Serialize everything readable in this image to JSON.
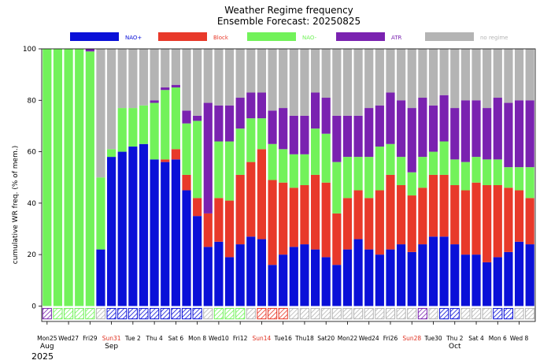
{
  "chart_data": {
    "type": "bar",
    "stacked": true,
    "title": "Weather Regime frequency",
    "subtitle": "Ensemble Forecast: 20250825",
    "ylabel": "cumulative WR freq. (% of mem.)",
    "xlabel": "",
    "ylim": [
      -6,
      100
    ],
    "yticks": [
      0,
      20,
      40,
      60,
      80,
      100
    ],
    "grid": false,
    "legend_position": "top",
    "x_tick_labels": [
      "Mon25",
      "Wed27",
      "Fri29",
      "Sun31",
      "Tue 2",
      "Thu 4",
      "Sat 6",
      "Mon 8",
      "Wed10",
      "Fri12",
      "Sun14",
      "Tue16",
      "Thu18",
      "Sat20",
      "Mon22",
      "Wed24",
      "Fri26",
      "Sun28",
      "Tue30",
      "Thu 2",
      "Sat 4",
      "Mon 6",
      "Wed 8"
    ],
    "weekend_tick_color": "#e03020",
    "weekend_ticks": [
      "Sun31",
      "Sun14",
      "Sun28"
    ],
    "month_labels": [
      {
        "tick": "Mon25",
        "text": "Aug"
      },
      {
        "tick": "Sun31",
        "text": "Sep"
      },
      {
        "tick": "Thu 2",
        "text": "Oct"
      }
    ],
    "year_label": "2025",
    "categories": [
      "Aug 25",
      "Aug 26",
      "Aug 27",
      "Aug 28",
      "Aug 29",
      "Aug 30",
      "Aug 31",
      "Sep 1",
      "Sep 2",
      "Sep 3",
      "Sep 4",
      "Sep 5",
      "Sep 6",
      "Sep 7",
      "Sep 8",
      "Sep 9",
      "Sep 10",
      "Sep 11",
      "Sep 12",
      "Sep 13",
      "Sep 14",
      "Sep 15",
      "Sep 16",
      "Sep 17",
      "Sep 18",
      "Sep 19",
      "Sep 20",
      "Sep 21",
      "Sep 22",
      "Sep 23",
      "Sep 24",
      "Sep 25",
      "Sep 26",
      "Sep 27",
      "Sep 28",
      "Sep 29",
      "Sep 30",
      "Oct 1",
      "Oct 2",
      "Oct 3",
      "Oct 4",
      "Oct 5",
      "Oct 6",
      "Oct 7",
      "Oct 8",
      "Oct 9"
    ],
    "series": [
      {
        "name": "NAO+",
        "color": "#0a10d8",
        "values": [
          0,
          0,
          0,
          0,
          0,
          22,
          58,
          60,
          62,
          63,
          57,
          56,
          57,
          45,
          35,
          23,
          25,
          19,
          24,
          27,
          26,
          16,
          20,
          23,
          24,
          22,
          19,
          16,
          22,
          26,
          22,
          20,
          22,
          24,
          21,
          24,
          27,
          27,
          24,
          20,
          20,
          17,
          19,
          21,
          25,
          24
        ]
      },
      {
        "name": "Block",
        "color": "#e8392a",
        "values": [
          0,
          0,
          0,
          0,
          0,
          0,
          0,
          0,
          0,
          0,
          0,
          1,
          4,
          6,
          7,
          13,
          17,
          22,
          27,
          29,
          35,
          33,
          28,
          23,
          23,
          29,
          29,
          20,
          20,
          19,
          20,
          25,
          29,
          23,
          22,
          22,
          24,
          24,
          23,
          25,
          28,
          30,
          28,
          25,
          20,
          18
        ]
      },
      {
        "name": "NAO-",
        "color": "#72f25a",
        "values": [
          100,
          100,
          100,
          100,
          99,
          28,
          3,
          17,
          15,
          15,
          22,
          27,
          24,
          20,
          30,
          0,
          22,
          23,
          18,
          17,
          12,
          14,
          13,
          13,
          12,
          18,
          19,
          20,
          16,
          13,
          16,
          17,
          12,
          11,
          9,
          12,
          9,
          13,
          10,
          11,
          10,
          10,
          10,
          8,
          9,
          12
        ]
      },
      {
        "name": "ATR",
        "color": "#7a22b0",
        "values": [
          0,
          0,
          0,
          0,
          0,
          0,
          0,
          0,
          0,
          0,
          1,
          1,
          1,
          2,
          2,
          0,
          0,
          0,
          0,
          0,
          0,
          0,
          0,
          0,
          0,
          0,
          0,
          0,
          0,
          0,
          0,
          0,
          0,
          0,
          0,
          0,
          0,
          0,
          0,
          0,
          0,
          0,
          0,
          0,
          0,
          0
        ]
      },
      {
        "name": "no regime",
        "color": "#b4b4b4",
        "values": [
          0,
          0,
          0,
          0,
          1,
          50,
          39,
          23,
          23,
          22,
          20,
          15,
          14,
          27,
          26,
          64,
          36,
          36,
          31,
          27,
          27,
          37,
          39,
          41,
          41,
          31,
          33,
          44,
          42,
          42,
          42,
          38,
          37,
          42,
          48,
          42,
          40,
          36,
          43,
          44,
          42,
          43,
          43,
          46,
          46,
          46
        ]
      }
    ],
    "atr_note": "ATR completes each stack to the value shown",
    "stack_tops": [
      100,
      100,
      100,
      100,
      100,
      50,
      61,
      77,
      77,
      78,
      80,
      84,
      86,
      76,
      74,
      79,
      64,
      64,
      69,
      73,
      73,
      63,
      61,
      59,
      59,
      69,
      67,
      56,
      58,
      58,
      58,
      62,
      63,
      58,
      52,
      58,
      60,
      64,
      57,
      56,
      58,
      57,
      57,
      54,
      54,
      54
    ],
    "stack_total_with_atr": [
      100,
      100,
      100,
      100,
      100,
      50,
      61,
      77,
      77,
      78,
      80,
      85,
      86,
      76,
      74,
      79,
      78,
      78,
      81,
      83,
      83,
      76,
      77,
      74,
      74,
      83,
      81,
      74,
      74,
      74,
      77,
      78,
      83,
      80,
      77,
      81,
      78,
      82,
      77,
      80,
      80,
      77,
      81,
      79,
      80,
      80
    ],
    "bottom_strip": {
      "value": -2.5,
      "colors": [
        "ATR",
        "NAO-",
        "NAO-",
        "NAO-",
        "NAO-",
        "no regime",
        "NAO+",
        "NAO+",
        "NAO+",
        "NAO+",
        "NAO+",
        "NAO+",
        "NAO+",
        "NAO+",
        "NAO+",
        "no regime",
        "NAO-",
        "NAO-",
        "NAO-",
        "no regime",
        "Block",
        "Block",
        "Block",
        "no regime",
        "no regime",
        "no regime",
        "no regime",
        "no regime",
        "no regime",
        "no regime",
        "no regime",
        "no regime",
        "no regime",
        "no regime",
        "no regime",
        "ATR",
        "no regime",
        "NAO+",
        "NAO+",
        "no regime",
        "no regime",
        "no regime",
        "NAO+",
        "NAO+",
        "no regime",
        "no regime"
      ]
    }
  }
}
